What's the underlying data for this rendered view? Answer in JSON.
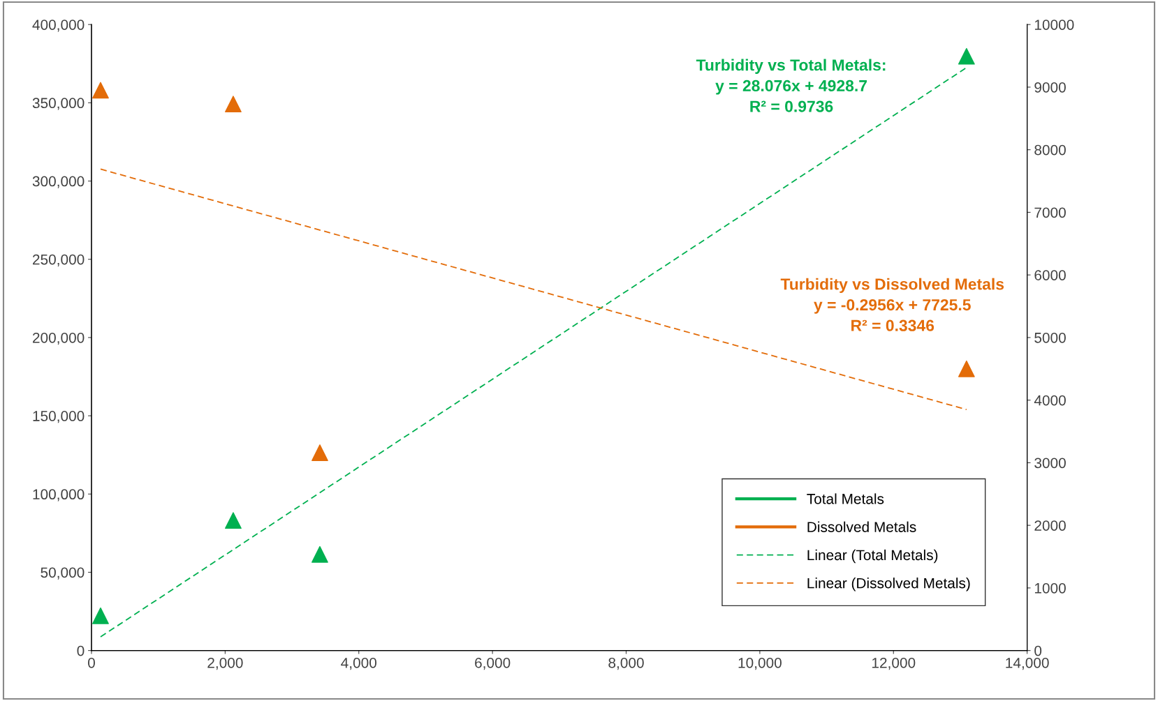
{
  "chart_data": {
    "type": "scatter",
    "legend": "bottom right",
    "grid": false,
    "xlim": [
      0,
      14000
    ],
    "xticks": [
      0,
      {
        "value": 2000,
        "label": "2,000"
      },
      {
        "value": 4000,
        "label": "4,000"
      },
      {
        "value": 6000,
        "label": "6,000"
      },
      {
        "value": 8000,
        "label": "8,000"
      },
      {
        "value": 10000,
        "label": "10,000"
      },
      {
        "value": 12000,
        "label": "12,000"
      },
      {
        "value": 14000,
        "label": "14,000"
      }
    ],
    "ylim": [
      0,
      400000
    ],
    "yticks": [
      0,
      {
        "value": 50000,
        "label": "50,000"
      },
      {
        "value": 100000,
        "label": "100,000"
      },
      {
        "value": 150000,
        "label": "150,000"
      },
      {
        "value": 200000,
        "label": "200,000"
      },
      {
        "value": 250000,
        "label": "250,000"
      },
      {
        "value": 300000,
        "label": "300,000"
      },
      {
        "value": 350000,
        "label": "350,000"
      },
      {
        "value": 400000,
        "label": "400,000"
      }
    ],
    "y2lim": [
      0,
      10000
    ],
    "y2ticks": [
      0,
      1000,
      2000,
      3000,
      4000,
      5000,
      6000,
      7000,
      8000,
      9000,
      10000
    ],
    "series": [
      {
        "name": "Total Metals",
        "marker": "triangle",
        "color": "#00b050",
        "x": [
          136,
          2121,
          3417,
          13093
        ],
        "values": [
          22200,
          83100,
          61400,
          379700
        ]
      },
      {
        "name": "Dissolved Metals",
        "marker": "triangle",
        "axis": "y2",
        "color": "#e36c09",
        "x": [
          136,
          2121,
          3417,
          13093
        ],
        "values": [
          8950,
          8730,
          3160,
          4500
        ]
      },
      {
        "name": "Linear (Total Metals)",
        "type": "line",
        "line_style": "dashed",
        "color": "#00b050",
        "x": [
          136,
          13093
        ],
        "values": [
          8750,
          372500
        ]
      },
      {
        "name": "Linear (Dissolved Metals)",
        "type": "line",
        "line_style": "dashed",
        "axis": "y2",
        "color": "#e36c09",
        "x": [
          136,
          13093
        ],
        "values": [
          7690,
          3850
        ]
      }
    ],
    "annotations": [
      "Turbidity vs Total Metals:\ny = 28.076x + 4928.7\nR² = 0.9736",
      "Turbidity vs Dissolved Metals\ny = -0.2956x + 7725.5\nR² = 0.3346"
    ]
  }
}
